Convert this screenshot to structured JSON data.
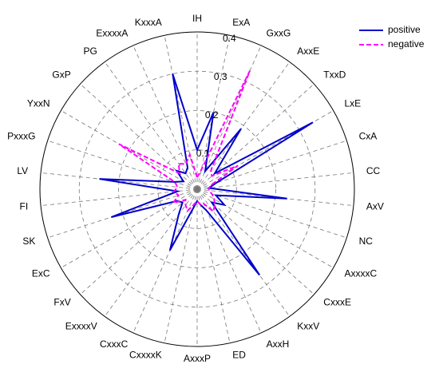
{
  "chart_data": {
    "type": "radar",
    "categories": [
      "IH",
      "ExA",
      "GxxG",
      "AxxE",
      "TxxD",
      "LxE",
      "CxA",
      "CC",
      "AxV",
      "NC",
      "AxxxxC",
      "CxxxE",
      "KxxV",
      "AxxH",
      "ED",
      "AxxxP",
      "CxxxxK",
      "CxxxC",
      "ExxxxV",
      "FxV",
      "ExC",
      "SK",
      "FI",
      "LV",
      "PxxxG",
      "YxxN",
      "GxP",
      "PG",
      "ExxxxA",
      "KxxxA"
    ],
    "rlim": [
      0,
      0.4
    ],
    "rticks": [
      0.1,
      0.2,
      0.3,
      0.4
    ],
    "grid": true,
    "legend": "upper right",
    "series": [
      {
        "name": "positive",
        "color": "#0000cc",
        "line_style": "solid",
        "values": [
          0.1,
          0.2,
          0.05,
          0.19,
          0.06,
          0.34,
          0.05,
          0.03,
          0.23,
          0.05,
          0.08,
          0.05,
          0.27,
          0.06,
          0.04,
          0.03,
          0.05,
          0.17,
          0.08,
          0.05,
          0.06,
          0.23,
          0.05,
          0.25,
          0.06,
          0.04,
          0.07,
          0.05,
          0.06,
          0.3
        ]
      },
      {
        "name": "negative",
        "color": "#ff00ff",
        "line_style": "dashed",
        "values": [
          0.03,
          0.05,
          0.33,
          0.06,
          0.05,
          0.12,
          0.04,
          0.03,
          0.03,
          0.04,
          0.05,
          0.06,
          0.07,
          0.04,
          0.04,
          0.03,
          0.04,
          0.06,
          0.05,
          0.04,
          0.07,
          0.05,
          0.06,
          0.05,
          0.06,
          0.23,
          0.06,
          0.08,
          0.07,
          0.09
        ]
      }
    ]
  }
}
